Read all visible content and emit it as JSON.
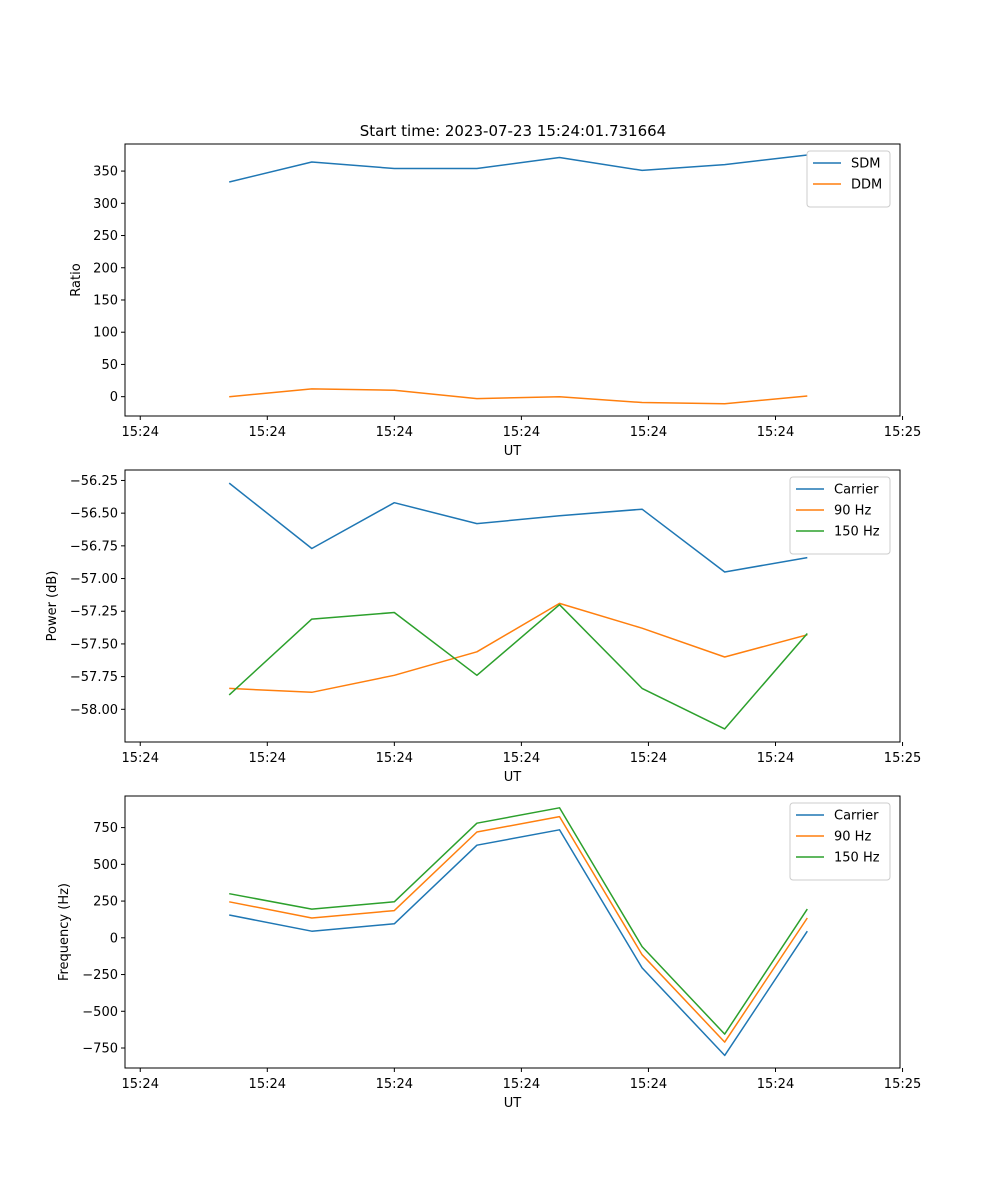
{
  "figure_title": "Start time: 2023-07-23 15:24:01.731664",
  "chart_data": [
    {
      "type": "line",
      "title": "Start time: 2023-07-23 15:24:01.731664",
      "xlabel": "UT",
      "ylabel": "Ratio",
      "x": [
        0.7,
        1.35,
        2.0,
        2.65,
        3.3,
        3.95,
        4.6,
        5.25
      ],
      "xlim": [
        -0.12,
        5.98
      ],
      "x_ticks": [
        0,
        1,
        2,
        3,
        4,
        5,
        6
      ],
      "x_tick_labels": [
        "15:24",
        "15:24",
        "15:24",
        "15:24",
        "15:24",
        "15:24",
        "15:25"
      ],
      "ylim": [
        -30,
        392
      ],
      "y_ticks": [
        0,
        50,
        100,
        150,
        200,
        250,
        300,
        350
      ],
      "y_tick_labels": [
        "0",
        "50",
        "100",
        "150",
        "200",
        "250",
        "300",
        "350"
      ],
      "legend_position": "top-right",
      "series": [
        {
          "name": "SDM",
          "color": "#1f77b4",
          "values": [
            333,
            364,
            354,
            354,
            371,
            351,
            360,
            375
          ]
        },
        {
          "name": "DDM",
          "color": "#ff7f0e",
          "values": [
            0,
            12,
            10,
            -3,
            0,
            -9,
            -11,
            1
          ]
        }
      ]
    },
    {
      "type": "line",
      "title": "",
      "xlabel": "UT",
      "ylabel": "Power (dB)",
      "x": [
        0.7,
        1.35,
        2.0,
        2.65,
        3.3,
        3.95,
        4.6,
        5.25
      ],
      "xlim": [
        -0.12,
        5.98
      ],
      "x_ticks": [
        0,
        1,
        2,
        3,
        4,
        5,
        6
      ],
      "x_tick_labels": [
        "15:24",
        "15:24",
        "15:24",
        "15:24",
        "15:24",
        "15:24",
        "15:25"
      ],
      "ylim": [
        -58.25,
        -56.17
      ],
      "y_ticks": [
        -58.0,
        -57.75,
        -57.5,
        -57.25,
        -57.0,
        -56.75,
        -56.5,
        -56.25
      ],
      "y_tick_labels": [
        "−58.00",
        "−57.75",
        "−57.50",
        "−57.25",
        "−57.00",
        "−56.75",
        "−56.50",
        "−56.25"
      ],
      "legend_position": "top-right",
      "series": [
        {
          "name": "Carrier",
          "color": "#1f77b4",
          "values": [
            -56.27,
            -56.77,
            -56.42,
            -56.58,
            -56.52,
            -56.47,
            -56.95,
            -56.84
          ]
        },
        {
          "name": "90 Hz",
          "color": "#ff7f0e",
          "values": [
            -57.84,
            -57.87,
            -57.74,
            -57.56,
            -57.19,
            -57.38,
            -57.6,
            -57.43
          ]
        },
        {
          "name": "150 Hz",
          "color": "#2ca02c",
          "values": [
            -57.89,
            -57.31,
            -57.26,
            -57.74,
            -57.2,
            -57.84,
            -58.15,
            -57.42
          ]
        }
      ]
    },
    {
      "type": "line",
      "title": "",
      "xlabel": "UT",
      "ylabel": "Frequency (Hz)",
      "x": [
        0.7,
        1.35,
        2.0,
        2.65,
        3.3,
        3.95,
        4.6,
        5.25
      ],
      "xlim": [
        -0.12,
        5.98
      ],
      "x_ticks": [
        0,
        1,
        2,
        3,
        4,
        5,
        6
      ],
      "x_tick_labels": [
        "15:24",
        "15:24",
        "15:24",
        "15:24",
        "15:24",
        "15:24",
        "15:25"
      ],
      "ylim": [
        -886,
        965
      ],
      "y_ticks": [
        -750,
        -500,
        -250,
        0,
        250,
        500,
        750
      ],
      "y_tick_labels": [
        "−750",
        "−500",
        "−250",
        "0",
        "250",
        "500",
        "750"
      ],
      "legend_position": "top-right",
      "series": [
        {
          "name": "Carrier",
          "color": "#1f77b4",
          "values": [
            155,
            45,
            95,
            630,
            735,
            -205,
            -800,
            45
          ]
        },
        {
          "name": "90 Hz",
          "color": "#ff7f0e",
          "values": [
            245,
            135,
            185,
            720,
            825,
            -115,
            -710,
            135
          ]
        },
        {
          "name": "150 Hz",
          "color": "#2ca02c",
          "values": [
            300,
            195,
            245,
            780,
            885,
            -60,
            -655,
            195
          ]
        }
      ]
    }
  ]
}
